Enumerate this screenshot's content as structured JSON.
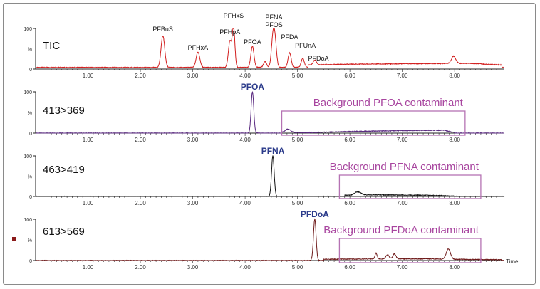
{
  "chart_data": [
    {
      "type": "line",
      "title": "",
      "channel_label": "TIC",
      "xlabel": "",
      "x_ticks": [
        "1.00",
        "2.00",
        "3.00",
        "4.00",
        "5.00",
        "6.00",
        "7.00",
        "8.00"
      ],
      "xlim": [
        0.0,
        8.95
      ],
      "y_ticks": [
        "100",
        "%",
        "0"
      ],
      "ylim": [
        0,
        100
      ],
      "color": "#d21f1f",
      "baseline": 4,
      "noise_region": [
        [
          5.2,
          6
        ],
        [
          6.0,
          8
        ],
        [
          7.0,
          9
        ],
        [
          8.3,
          10
        ],
        [
          8.9,
          6
        ]
      ],
      "peaks": [
        {
          "name": "PFBuS",
          "x": 2.43,
          "y": 78,
          "w": 0.035
        },
        {
          "name": "PFHxA",
          "x": 3.1,
          "y": 38,
          "w": 0.035
        },
        {
          "name": "PFHpA",
          "x": 3.71,
          "y": 65,
          "w": 0.03
        },
        {
          "name": "PFHxS",
          "x": 3.78,
          "y": 98,
          "w": 0.025
        },
        {
          "name": "PFOA",
          "x": 4.14,
          "y": 52,
          "w": 0.03
        },
        {
          "name": "PFNA",
          "x": 4.53,
          "y": 64,
          "w": 0.03
        },
        {
          "name": "PFOS",
          "x": 4.57,
          "y": 60,
          "w": 0.03
        },
        {
          "name": "PFDA",
          "x": 4.85,
          "y": 36,
          "w": 0.03
        },
        {
          "name": "PFUnA",
          "x": 5.1,
          "y": 22,
          "w": 0.03
        },
        {
          "name": "PFDoA",
          "x": 5.33,
          "y": 12,
          "w": 0.03
        },
        {
          "name": "",
          "x": 4.38,
          "y": 14,
          "w": 0.03
        },
        {
          "name": "",
          "x": 7.98,
          "y": 18,
          "w": 0.04
        }
      ],
      "peak_labels": [
        "PFBuS",
        "PFHxA",
        "PFHpA",
        "PFHxS",
        "PFOA",
        "PFNA\nPFOS",
        "PFDA",
        "PFUnA",
        "PFDoA"
      ]
    },
    {
      "type": "line",
      "channel_label": "413>369",
      "x_ticks": [
        "1.00",
        "2.00",
        "3.00",
        "4.00",
        "5.00",
        "6.00",
        "7.00",
        "8.00"
      ],
      "xlim": [
        0.0,
        8.95
      ],
      "y_ticks": [
        "100",
        "%",
        "0"
      ],
      "ylim": [
        0,
        100
      ],
      "color": "#5a2a80",
      "baseline": 0,
      "noise_region": [
        [
          4.7,
          2
        ],
        [
          5.2,
          1
        ],
        [
          6.0,
          4
        ],
        [
          7.0,
          6
        ],
        [
          7.8,
          7
        ],
        [
          8.0,
          1
        ]
      ],
      "peaks": [
        {
          "name": "PFOA",
          "x": 4.14,
          "y": 100,
          "w": 0.025
        },
        {
          "name": "",
          "x": 4.82,
          "y": 8,
          "w": 0.05
        }
      ],
      "major_label": "PFOA",
      "annotation": "Background PFOA contaminant",
      "box_x": [
        4.7,
        8.2
      ]
    },
    {
      "type": "line",
      "channel_label": "463>419",
      "x_ticks": [
        "1.00",
        "2.00",
        "3.00",
        "4.00",
        "5.00",
        "6.00",
        "7.00",
        "8.00"
      ],
      "xlim": [
        0.0,
        8.95
      ],
      "y_ticks": [
        "100",
        "%",
        "0"
      ],
      "ylim": [
        0,
        100
      ],
      "color": "#111111",
      "baseline": 0,
      "noise_region": [
        [
          5.9,
          3
        ],
        [
          6.4,
          4
        ],
        [
          7.5,
          3
        ],
        [
          8.0,
          1
        ]
      ],
      "peaks": [
        {
          "name": "PFNA",
          "x": 4.53,
          "y": 100,
          "w": 0.025
        },
        {
          "name": "",
          "x": 6.15,
          "y": 8,
          "w": 0.06
        }
      ],
      "major_label": "PFNA",
      "annotation": "Background PFNA contaminant",
      "box_x": [
        5.8,
        8.5
      ]
    },
    {
      "type": "line",
      "channel_label": "613>569",
      "x_ticks": [
        "1.00",
        "2.00",
        "3.00",
        "4.00",
        "5.00",
        "6.00",
        "7.00",
        "8.00"
      ],
      "xlim": [
        0.0,
        8.95
      ],
      "y_ticks": [
        "100",
        "%",
        "0"
      ],
      "ylim": [
        0,
        100
      ],
      "color": "#6e1a1a",
      "baseline": 0,
      "noise_region": [
        [
          5.5,
          3
        ],
        [
          6.5,
          4
        ],
        [
          7.5,
          4
        ],
        [
          8.0,
          3
        ],
        [
          8.9,
          2
        ]
      ],
      "peaks": [
        {
          "name": "PFDoA",
          "x": 5.33,
          "y": 100,
          "w": 0.025
        },
        {
          "name": "",
          "x": 6.5,
          "y": 14,
          "w": 0.02
        },
        {
          "name": "",
          "x": 6.72,
          "y": 10,
          "w": 0.03
        },
        {
          "name": "",
          "x": 6.85,
          "y": 12,
          "w": 0.03
        },
        {
          "name": "",
          "x": 7.88,
          "y": 25,
          "w": 0.04
        }
      ],
      "major_label": "PFDoA",
      "annotation": "Background PFDoA contaminant",
      "box_x": [
        5.8,
        8.5
      ],
      "x_end_label": "Time"
    }
  ],
  "colors": {
    "major_label": "#2a3a8a",
    "annotation": "#a8459f",
    "box": "#b572b3",
    "axis": "#222222",
    "marker": "#8b1a1a"
  }
}
